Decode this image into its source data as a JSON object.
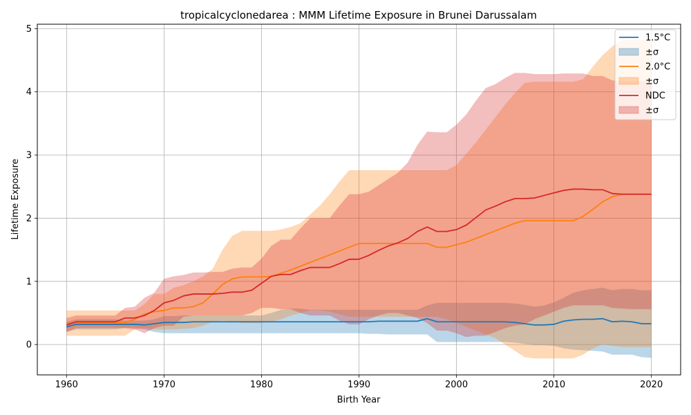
{
  "chart_data": {
    "type": "line",
    "title": "tropicalcyclonedarea : MMM Lifetime Exposure in Brunei Darussalam",
    "xlabel": "Birth Year",
    "ylabel": "Lifetime Exposure",
    "xlim": [
      1957,
      2023
    ],
    "ylim": [
      -0.48,
      5.07
    ],
    "xticks": [
      1960,
      1970,
      1980,
      1990,
      2000,
      2010,
      2020
    ],
    "yticks": [
      0,
      1,
      2,
      3,
      4,
      5
    ],
    "grid": true,
    "legend_position": "top-right",
    "x": [
      1960,
      1961,
      1962,
      1963,
      1964,
      1965,
      1966,
      1967,
      1968,
      1969,
      1970,
      1971,
      1972,
      1973,
      1974,
      1975,
      1976,
      1977,
      1978,
      1979,
      1980,
      1981,
      1982,
      1983,
      1984,
      1985,
      1986,
      1987,
      1988,
      1989,
      1990,
      1991,
      1992,
      1993,
      1994,
      1995,
      1996,
      1997,
      1998,
      1999,
      2000,
      2001,
      2002,
      2003,
      2004,
      2005,
      2006,
      2007,
      2008,
      2009,
      2010,
      2011,
      2012,
      2013,
      2014,
      2015,
      2016,
      2017,
      2018,
      2019,
      2020
    ],
    "series": [
      {
        "name": "1.5°C",
        "band_label": "±σ",
        "color": "#1f77b4",
        "values": [
          0.28,
          0.32,
          0.32,
          0.32,
          0.32,
          0.32,
          0.32,
          0.32,
          0.31,
          0.33,
          0.35,
          0.35,
          0.35,
          0.36,
          0.36,
          0.36,
          0.36,
          0.36,
          0.36,
          0.36,
          0.36,
          0.36,
          0.36,
          0.36,
          0.36,
          0.36,
          0.36,
          0.36,
          0.36,
          0.36,
          0.36,
          0.36,
          0.37,
          0.37,
          0.37,
          0.37,
          0.37,
          0.41,
          0.36,
          0.36,
          0.36,
          0.36,
          0.36,
          0.36,
          0.36,
          0.36,
          0.35,
          0.33,
          0.31,
          0.31,
          0.32,
          0.37,
          0.39,
          0.4,
          0.4,
          0.41,
          0.36,
          0.37,
          0.36,
          0.33,
          0.33
        ],
        "upper": [
          0.36,
          0.4,
          0.4,
          0.4,
          0.4,
          0.4,
          0.38,
          0.38,
          0.38,
          0.4,
          0.45,
          0.45,
          0.46,
          0.46,
          0.46,
          0.46,
          0.46,
          0.46,
          0.46,
          0.46,
          0.46,
          0.5,
          0.55,
          0.57,
          0.57,
          0.55,
          0.55,
          0.55,
          0.55,
          0.55,
          0.55,
          0.55,
          0.55,
          0.55,
          0.55,
          0.55,
          0.55,
          0.62,
          0.66,
          0.66,
          0.66,
          0.66,
          0.66,
          0.66,
          0.66,
          0.66,
          0.65,
          0.63,
          0.6,
          0.62,
          0.67,
          0.74,
          0.82,
          0.86,
          0.88,
          0.9,
          0.86,
          0.88,
          0.88,
          0.86,
          0.86
        ],
        "lower": [
          0.2,
          0.24,
          0.24,
          0.24,
          0.24,
          0.24,
          0.26,
          0.26,
          0.24,
          0.2,
          0.18,
          0.18,
          0.18,
          0.18,
          0.18,
          0.18,
          0.18,
          0.18,
          0.18,
          0.18,
          0.18,
          0.18,
          0.18,
          0.18,
          0.18,
          0.18,
          0.18,
          0.18,
          0.18,
          0.18,
          0.18,
          0.17,
          0.17,
          0.16,
          0.16,
          0.16,
          0.16,
          0.16,
          0.04,
          0.04,
          0.04,
          0.04,
          0.04,
          0.04,
          0.04,
          0.04,
          0.03,
          0.01,
          -0.01,
          -0.01,
          -0.02,
          -0.06,
          -0.08,
          -0.09,
          -0.1,
          -0.11,
          -0.16,
          -0.16,
          -0.16,
          -0.2,
          -0.21
        ]
      },
      {
        "name": "2.0°C",
        "band_label": "±σ",
        "color": "#ff7f0e",
        "values": [
          0.33,
          0.35,
          0.35,
          0.35,
          0.35,
          0.35,
          0.35,
          0.4,
          0.48,
          0.52,
          0.54,
          0.58,
          0.58,
          0.6,
          0.66,
          0.8,
          0.95,
          1.04,
          1.07,
          1.07,
          1.07,
          1.08,
          1.13,
          1.18,
          1.24,
          1.3,
          1.36,
          1.42,
          1.48,
          1.54,
          1.6,
          1.6,
          1.6,
          1.6,
          1.6,
          1.6,
          1.6,
          1.6,
          1.54,
          1.54,
          1.58,
          1.62,
          1.68,
          1.74,
          1.8,
          1.86,
          1.92,
          1.96,
          1.96,
          1.96,
          1.96,
          1.96,
          1.96,
          2.03,
          2.14,
          2.26,
          2.34,
          2.38,
          2.38,
          2.38,
          2.38
        ],
        "upper": [
          0.54,
          0.54,
          0.54,
          0.54,
          0.54,
          0.54,
          0.54,
          0.54,
          0.64,
          0.8,
          0.8,
          0.9,
          0.94,
          1.0,
          1.08,
          1.2,
          1.5,
          1.72,
          1.8,
          1.8,
          1.8,
          1.8,
          1.82,
          1.86,
          1.92,
          2.06,
          2.2,
          2.38,
          2.58,
          2.76,
          2.76,
          2.76,
          2.76,
          2.76,
          2.76,
          2.76,
          2.76,
          2.76,
          2.76,
          2.76,
          2.84,
          3.02,
          3.2,
          3.4,
          3.6,
          3.8,
          3.98,
          4.14,
          4.16,
          4.16,
          4.16,
          4.16,
          4.16,
          4.2,
          4.4,
          4.58,
          4.72,
          4.82,
          4.82,
          4.82,
          4.82
        ],
        "lower": [
          0.14,
          0.14,
          0.14,
          0.14,
          0.14,
          0.14,
          0.14,
          0.24,
          0.26,
          0.24,
          0.24,
          0.24,
          0.25,
          0.26,
          0.3,
          0.36,
          0.38,
          0.36,
          0.34,
          0.34,
          0.34,
          0.36,
          0.4,
          0.46,
          0.5,
          0.54,
          0.54,
          0.52,
          0.48,
          0.44,
          0.44,
          0.44,
          0.44,
          0.44,
          0.44,
          0.44,
          0.44,
          0.44,
          0.44,
          0.4,
          0.34,
          0.28,
          0.22,
          0.16,
          0.1,
          0.0,
          -0.1,
          -0.2,
          -0.22,
          -0.22,
          -0.22,
          -0.22,
          -0.22,
          -0.16,
          -0.06,
          0.0,
          -0.02,
          -0.04,
          -0.04,
          -0.04,
          -0.04
        ]
      },
      {
        "name": "NDC",
        "band_label": "±σ",
        "color": "#d62728",
        "values": [
          0.31,
          0.36,
          0.36,
          0.36,
          0.36,
          0.36,
          0.42,
          0.42,
          0.46,
          0.54,
          0.66,
          0.7,
          0.77,
          0.8,
          0.8,
          0.8,
          0.81,
          0.83,
          0.83,
          0.86,
          0.97,
          1.08,
          1.11,
          1.11,
          1.17,
          1.22,
          1.22,
          1.22,
          1.28,
          1.35,
          1.35,
          1.41,
          1.49,
          1.56,
          1.61,
          1.68,
          1.79,
          1.86,
          1.79,
          1.79,
          1.82,
          1.89,
          2.01,
          2.13,
          2.19,
          2.26,
          2.31,
          2.31,
          2.32,
          2.36,
          2.4,
          2.44,
          2.46,
          2.46,
          2.45,
          2.45,
          2.39,
          2.38,
          2.38,
          2.38,
          2.38
        ],
        "upper": [
          0.42,
          0.46,
          0.46,
          0.46,
          0.46,
          0.46,
          0.58,
          0.6,
          0.74,
          0.82,
          1.04,
          1.08,
          1.1,
          1.14,
          1.14,
          1.15,
          1.15,
          1.2,
          1.22,
          1.22,
          1.36,
          1.56,
          1.66,
          1.66,
          1.84,
          2.0,
          2.0,
          2.0,
          2.2,
          2.38,
          2.38,
          2.42,
          2.52,
          2.62,
          2.72,
          2.88,
          3.16,
          3.37,
          3.36,
          3.36,
          3.48,
          3.64,
          3.86,
          4.06,
          4.12,
          4.22,
          4.3,
          4.3,
          4.28,
          4.28,
          4.28,
          4.29,
          4.29,
          4.29,
          4.25,
          4.25,
          4.18,
          4.17,
          4.17,
          4.17,
          4.17
        ],
        "lower": [
          0.2,
          0.26,
          0.26,
          0.26,
          0.26,
          0.26,
          0.26,
          0.24,
          0.18,
          0.26,
          0.3,
          0.3,
          0.44,
          0.46,
          0.46,
          0.46,
          0.46,
          0.46,
          0.46,
          0.5,
          0.58,
          0.58,
          0.56,
          0.56,
          0.5,
          0.46,
          0.46,
          0.46,
          0.38,
          0.32,
          0.32,
          0.4,
          0.46,
          0.5,
          0.5,
          0.46,
          0.42,
          0.34,
          0.22,
          0.22,
          0.18,
          0.12,
          0.14,
          0.14,
          0.2,
          0.26,
          0.3,
          0.32,
          0.4,
          0.46,
          0.52,
          0.58,
          0.62,
          0.62,
          0.62,
          0.62,
          0.58,
          0.57,
          0.56,
          0.56,
          0.56
        ]
      }
    ]
  }
}
